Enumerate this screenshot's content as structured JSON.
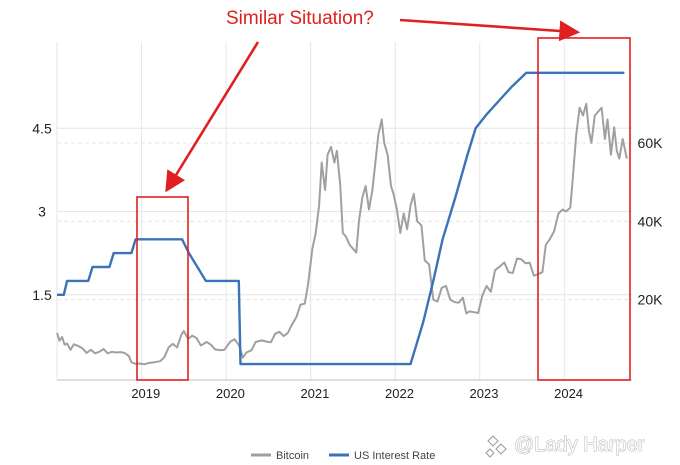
{
  "chart_data": {
    "type": "line",
    "title": "",
    "annotation": "Similar Situation?",
    "y_left": {
      "ticks": [
        "1.5",
        "3",
        "4.5"
      ],
      "range": [
        0,
        6
      ]
    },
    "y_right": {
      "ticks": [
        "20K",
        "40K",
        "60K"
      ],
      "range": [
        0,
        85000
      ]
    },
    "x_ticks": [
      "2019",
      "2020",
      "2021",
      "2022",
      "2023",
      "2024"
    ],
    "x_range": [
      2018.0,
      2024.8
    ],
    "grid": true,
    "legend_position": "bottom",
    "series": [
      {
        "name": "Bitcoin",
        "axis": "right",
        "color": "#a0a0a0",
        "points": [
          [
            2018.0,
            11500
          ],
          [
            2018.03,
            9500
          ],
          [
            2018.06,
            10500
          ],
          [
            2018.09,
            8500
          ],
          [
            2018.12,
            8800
          ],
          [
            2018.16,
            7200
          ],
          [
            2018.2,
            8600
          ],
          [
            2018.25,
            8200
          ],
          [
            2018.3,
            7600
          ],
          [
            2018.35,
            6400
          ],
          [
            2018.4,
            7200
          ],
          [
            2018.45,
            6300
          ],
          [
            2018.5,
            6700
          ],
          [
            2018.55,
            7400
          ],
          [
            2018.6,
            6300
          ],
          [
            2018.65,
            6700
          ],
          [
            2018.7,
            6500
          ],
          [
            2018.75,
            6600
          ],
          [
            2018.8,
            6400
          ],
          [
            2018.85,
            5600
          ],
          [
            2018.88,
            4000
          ],
          [
            2018.93,
            3600
          ],
          [
            2018.97,
            3700
          ],
          [
            2019.03,
            3500
          ],
          [
            2019.08,
            3800
          ],
          [
            2019.15,
            4000
          ],
          [
            2019.22,
            4300
          ],
          [
            2019.27,
            5300
          ],
          [
            2019.32,
            7800
          ],
          [
            2019.37,
            8700
          ],
          [
            2019.42,
            7800
          ],
          [
            2019.47,
            11000
          ],
          [
            2019.5,
            12000
          ],
          [
            2019.55,
            10000
          ],
          [
            2019.6,
            10800
          ],
          [
            2019.65,
            10200
          ],
          [
            2019.7,
            8300
          ],
          [
            2019.77,
            9200
          ],
          [
            2019.82,
            8500
          ],
          [
            2019.87,
            7300
          ],
          [
            2019.93,
            7100
          ],
          [
            2019.98,
            7200
          ],
          [
            2020.05,
            9300
          ],
          [
            2020.1,
            9900
          ],
          [
            2020.15,
            8400
          ],
          [
            2020.2,
            5200
          ],
          [
            2020.24,
            6500
          ],
          [
            2020.3,
            7100
          ],
          [
            2020.35,
            9200
          ],
          [
            2020.42,
            9600
          ],
          [
            2020.48,
            9300
          ],
          [
            2020.53,
            9100
          ],
          [
            2020.58,
            11300
          ],
          [
            2020.63,
            11800
          ],
          [
            2020.68,
            10700
          ],
          [
            2020.73,
            11500
          ],
          [
            2020.78,
            13700
          ],
          [
            2020.83,
            15500
          ],
          [
            2020.88,
            18700
          ],
          [
            2020.93,
            19000
          ],
          [
            2020.97,
            24000
          ],
          [
            2021.02,
            33000
          ],
          [
            2021.06,
            37000
          ],
          [
            2021.1,
            44000
          ],
          [
            2021.13,
            55000
          ],
          [
            2021.17,
            48000
          ],
          [
            2021.2,
            57000
          ],
          [
            2021.24,
            59000
          ],
          [
            2021.28,
            55000
          ],
          [
            2021.31,
            58000
          ],
          [
            2021.35,
            49000
          ],
          [
            2021.38,
            37000
          ],
          [
            2021.42,
            36000
          ],
          [
            2021.46,
            34000
          ],
          [
            2021.5,
            33000
          ],
          [
            2021.54,
            32000
          ],
          [
            2021.57,
            40000
          ],
          [
            2021.61,
            46000
          ],
          [
            2021.65,
            49000
          ],
          [
            2021.69,
            43000
          ],
          [
            2021.73,
            48000
          ],
          [
            2021.77,
            56000
          ],
          [
            2021.8,
            62000
          ],
          [
            2021.84,
            66000
          ],
          [
            2021.87,
            60000
          ],
          [
            2021.91,
            57000
          ],
          [
            2021.95,
            49000
          ],
          [
            2021.98,
            47000
          ],
          [
            2022.02,
            43000
          ],
          [
            2022.06,
            37000
          ],
          [
            2022.1,
            42000
          ],
          [
            2022.14,
            38000
          ],
          [
            2022.18,
            44000
          ],
          [
            2022.22,
            47000
          ],
          [
            2022.26,
            40000
          ],
          [
            2022.31,
            39000
          ],
          [
            2022.35,
            30000
          ],
          [
            2022.4,
            29000
          ],
          [
            2022.45,
            20000
          ],
          [
            2022.5,
            19500
          ],
          [
            2022.55,
            23000
          ],
          [
            2022.6,
            23500
          ],
          [
            2022.65,
            20000
          ],
          [
            2022.7,
            19400
          ],
          [
            2022.75,
            19200
          ],
          [
            2022.8,
            20500
          ],
          [
            2022.84,
            16500
          ],
          [
            2022.88,
            17000
          ],
          [
            2022.93,
            16800
          ],
          [
            2022.98,
            16600
          ],
          [
            2023.03,
            21000
          ],
          [
            2023.08,
            23500
          ],
          [
            2023.13,
            22000
          ],
          [
            2023.18,
            27500
          ],
          [
            2023.24,
            28500
          ],
          [
            2023.29,
            29500
          ],
          [
            2023.34,
            27000
          ],
          [
            2023.39,
            26800
          ],
          [
            2023.44,
            30500
          ],
          [
            2023.49,
            30300
          ],
          [
            2023.54,
            29300
          ],
          [
            2023.59,
            29400
          ],
          [
            2023.64,
            26100
          ],
          [
            2023.69,
            26500
          ],
          [
            2023.74,
            27000
          ],
          [
            2023.78,
            34000
          ],
          [
            2023.83,
            35500
          ],
          [
            2023.88,
            37500
          ],
          [
            2023.93,
            42000
          ],
          [
            2023.98,
            43000
          ],
          [
            2024.02,
            42500
          ],
          [
            2024.07,
            43500
          ],
          [
            2024.1,
            51000
          ],
          [
            2024.14,
            62000
          ],
          [
            2024.18,
            69000
          ],
          [
            2024.22,
            67000
          ],
          [
            2024.26,
            70000
          ],
          [
            2024.29,
            63000
          ],
          [
            2024.32,
            60000
          ],
          [
            2024.36,
            67000
          ],
          [
            2024.4,
            68000
          ],
          [
            2024.44,
            69000
          ],
          [
            2024.48,
            61000
          ],
          [
            2024.51,
            66000
          ],
          [
            2024.55,
            57000
          ],
          [
            2024.59,
            64000
          ],
          [
            2024.62,
            58000
          ],
          [
            2024.65,
            56000
          ],
          [
            2024.69,
            61000
          ],
          [
            2024.72,
            58000
          ],
          [
            2024.74,
            56000
          ]
        ]
      },
      {
        "name": "US Interest Rate",
        "axis": "left",
        "color": "#3a73b8",
        "points": [
          [
            2018.0,
            1.5
          ],
          [
            2018.08,
            1.5
          ],
          [
            2018.12,
            1.75
          ],
          [
            2018.37,
            1.75
          ],
          [
            2018.42,
            2.0
          ],
          [
            2018.62,
            2.0
          ],
          [
            2018.67,
            2.25
          ],
          [
            2018.88,
            2.25
          ],
          [
            2018.93,
            2.5
          ],
          [
            2019.48,
            2.5
          ],
          [
            2019.56,
            2.25
          ],
          [
            2019.66,
            2.0
          ],
          [
            2019.76,
            1.75
          ],
          [
            2020.15,
            1.75
          ],
          [
            2020.17,
            0.25
          ],
          [
            2022.18,
            0.25
          ],
          [
            2022.23,
            0.5
          ],
          [
            2022.33,
            1.0
          ],
          [
            2022.45,
            1.75
          ],
          [
            2022.56,
            2.5
          ],
          [
            2022.71,
            3.25
          ],
          [
            2022.85,
            4.0
          ],
          [
            2022.95,
            4.5
          ],
          [
            2023.08,
            4.75
          ],
          [
            2023.23,
            5.0
          ],
          [
            2023.38,
            5.25
          ],
          [
            2023.55,
            5.5
          ],
          [
            2024.71,
            5.5
          ]
        ]
      }
    ]
  },
  "legend": {
    "bitcoin_label": "Bitcoin",
    "rate_label": "US Interest Rate"
  },
  "watermark": "@Lady Harper",
  "colors": {
    "annotation": "#e02020",
    "grid": "#e6e6e6",
    "bitcoin": "#a0a0a0",
    "rate": "#3a73b8"
  }
}
